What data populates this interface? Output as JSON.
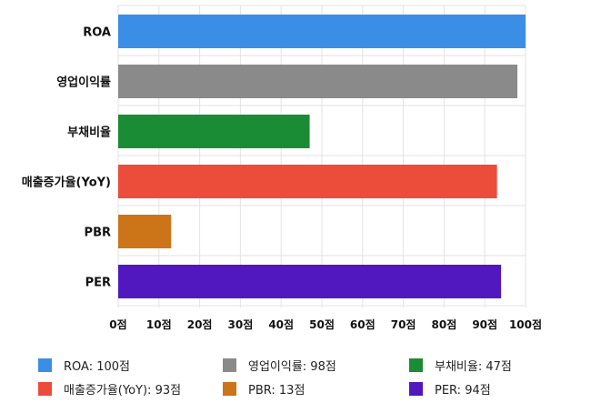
{
  "chart_data": {
    "type": "bar",
    "orientation": "horizontal",
    "categories": [
      "ROA",
      "영업이익률",
      "부채비율",
      "매출증가율(YoY)",
      "PBR",
      "PER"
    ],
    "values": [
      100,
      98,
      47,
      93,
      13,
      94
    ],
    "colors": [
      "#3a8ee6",
      "#8a8a8a",
      "#1a8c35",
      "#ec4c3a",
      "#cc7418",
      "#5218bf"
    ],
    "xlim": [
      0,
      100
    ],
    "x_ticks": [
      0,
      10,
      20,
      30,
      40,
      50,
      60,
      70,
      80,
      90,
      100
    ],
    "tick_suffix": "점",
    "grid": true,
    "legend_position": "bottom",
    "legend_items": [
      "ROA: 100점",
      "영업이익률: 98점",
      "부채비율: 47점",
      "매출증가율(YoY): 93점",
      "PBR: 13점",
      "PER: 94점"
    ]
  }
}
